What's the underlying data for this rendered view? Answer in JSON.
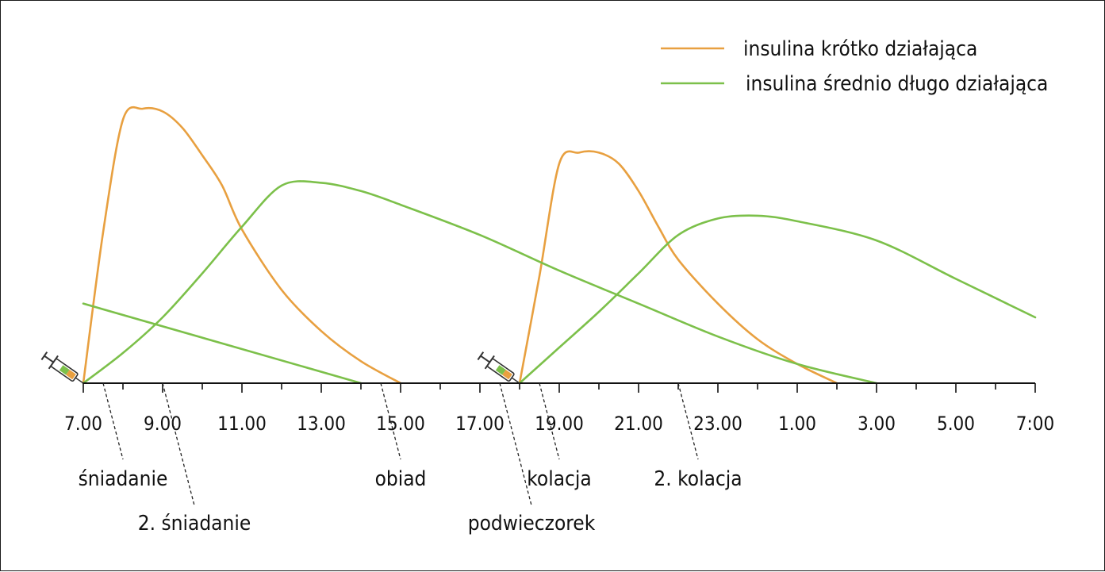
{
  "chart_data": {
    "type": "line",
    "title": "",
    "xlabel": "",
    "ylabel": "",
    "x_unit": "hour of day (7.00 today to 7:00 next day)",
    "x_range": [
      7,
      31
    ],
    "y_range": [
      0,
      1
    ],
    "grid": false,
    "legend_position": "top-right",
    "tick_labels": [
      "7.00",
      "9.00",
      "11.00",
      "13.00",
      "15.00",
      "17.00",
      "19.00",
      "21.00",
      "23.00",
      "1.00",
      "3.00",
      "5.00",
      "7:00"
    ],
    "legend": [
      {
        "label": "insulina krótko działająca",
        "color": "#E8A040"
      },
      {
        "label": "insulina średnio długo działająca",
        "color": "#7CC04A"
      }
    ],
    "series": [
      {
        "name": "insulina krótko działająca",
        "color": "#E8A040",
        "segments": [
          {
            "x": [
              7,
              7.5,
              8.0,
              8.5,
              9.0,
              9.5,
              10.0,
              10.5,
              11.0,
              12.0,
              13.0,
              14.0,
              15.0
            ],
            "y": [
              0,
              0.55,
              0.96,
              1.0,
              0.99,
              0.93,
              0.83,
              0.72,
              0.56,
              0.34,
              0.19,
              0.08,
              0
            ]
          },
          {
            "x": [
              18,
              18.5,
              19.0,
              19.5,
              20.0,
              20.5,
              21.0,
              21.5,
              22.0,
              23.0,
              24.0,
              25.0,
              26.0
            ],
            "y": [
              0,
              0.39,
              0.8,
              0.84,
              0.84,
              0.8,
              0.7,
              0.57,
              0.45,
              0.29,
              0.16,
              0.07,
              0
            ]
          }
        ]
      },
      {
        "name": "insulina średnio długo działająca",
        "color": "#7CC04A",
        "segments": [
          {
            "x": [
              7,
              8,
              9,
              10,
              11,
              12,
              13,
              14,
              15,
              17,
              19,
              21,
              23,
              25,
              27
            ],
            "y": [
              0,
              0.11,
              0.24,
              0.4,
              0.57,
              0.72,
              0.73,
              0.7,
              0.65,
              0.54,
              0.41,
              0.29,
              0.17,
              0.07,
              0
            ]
          },
          {
            "x": [
              7,
              14
            ],
            "y": [
              0.29,
              0
            ]
          },
          {
            "x": [
              18,
              19,
              20,
              21,
              22,
              23,
              24,
              25,
              27,
              29,
              31
            ],
            "y": [
              0,
              0.13,
              0.26,
              0.4,
              0.54,
              0.6,
              0.61,
              0.59,
              0.52,
              0.38,
              0.24
            ]
          }
        ]
      }
    ],
    "injections": [
      7,
      18
    ],
    "meals": [
      {
        "label": "śniadanie",
        "x": 7.5,
        "row": 1,
        "anchor": "start"
      },
      {
        "label": "2. śniadanie",
        "x": 9.0,
        "row": 2,
        "anchor": "middle"
      },
      {
        "label": "obiad",
        "x": 14.5,
        "row": 1,
        "anchor": "start"
      },
      {
        "label": "podwieczorek",
        "x": 17.5,
        "row": 2,
        "anchor": "middle"
      },
      {
        "label": "kolacja",
        "x": 18.5,
        "row": 1,
        "anchor": "start"
      },
      {
        "label": "2. kolacja",
        "x": 22.0,
        "row": 1,
        "anchor": "start"
      }
    ]
  }
}
